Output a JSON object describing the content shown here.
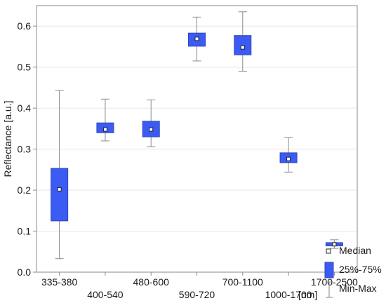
{
  "chart_data": {
    "type": "boxplot",
    "ylabel": "Reflectance [a.u.]",
    "xunit": "[nm]",
    "ylim": [
      0.0,
      0.65
    ],
    "yticks": [
      "0.0",
      "0.1",
      "0.2",
      "0.3",
      "0.4",
      "0.5",
      "0.6"
    ],
    "grid": true,
    "categories": [
      "335-380",
      "400-540",
      "480-600",
      "590-720",
      "700-1100",
      "1000-1700",
      "1700-2500"
    ],
    "boxes": [
      {
        "category": "335-380",
        "min": 0.033,
        "q1": 0.125,
        "median": 0.202,
        "q3": 0.253,
        "max": 0.443
      },
      {
        "category": "400-540",
        "min": 0.32,
        "q1": 0.34,
        "median": 0.348,
        "q3": 0.364,
        "max": 0.422
      },
      {
        "category": "480-600",
        "min": 0.306,
        "q1": 0.33,
        "median": 0.348,
        "q3": 0.368,
        "max": 0.42
      },
      {
        "category": "590-720",
        "min": 0.515,
        "q1": 0.551,
        "median": 0.569,
        "q3": 0.583,
        "max": 0.622
      },
      {
        "category": "700-1100",
        "min": 0.49,
        "q1": 0.53,
        "median": 0.548,
        "q3": 0.577,
        "max": 0.635
      },
      {
        "category": "1000-1700",
        "min": 0.244,
        "q1": 0.267,
        "median": 0.276,
        "q3": 0.291,
        "max": 0.328
      },
      {
        "category": "1700-2500",
        "min": 0.058,
        "q1": 0.064,
        "median": 0.068,
        "q3": 0.072,
        "max": 0.079
      }
    ],
    "legend": {
      "placement": "bottom-right",
      "items": [
        {
          "label": "Median",
          "symbol": "white-square-marker"
        },
        {
          "label": "25%-75%",
          "symbol": "blue-box"
        },
        {
          "label": "Min-Max",
          "symbol": "whisker"
        }
      ]
    },
    "colors": {
      "box_fill": "#3b5bf5",
      "box_edge": "#3146b4",
      "whisker": "#8a8a8a",
      "grid": "#e6e6e6",
      "frame": "#8a8a8a"
    }
  }
}
